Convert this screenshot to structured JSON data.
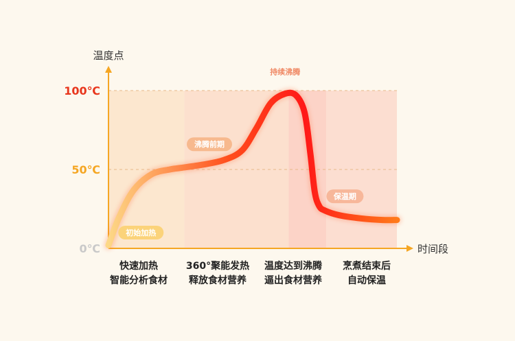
{
  "chart_data": {
    "type": "line",
    "ylabel": "温度点",
    "xlabel": "时间段",
    "y_ticks": [
      {
        "label": "100℃",
        "value": 100,
        "color": "#e8361c"
      },
      {
        "label": "50℃",
        "value": 50,
        "color": "#f5a623"
      },
      {
        "label": "0℃",
        "value": 0,
        "color": "#c9c9c9"
      }
    ],
    "ylim": [
      0,
      100
    ],
    "xlim": [
      0,
      4
    ],
    "phases": [
      {
        "line1": "快速加热",
        "line2": "智能分析食材",
        "band_color": "#fbe4c9"
      },
      {
        "line1": "360°聚能发热",
        "line2": "释放食材营养",
        "band_color": "#fcdcc8"
      },
      {
        "line1": "温度达到沸腾",
        "line2": "逼出食材营养",
        "band_color": "#fbcdbf"
      },
      {
        "line1": "烹煮结束后",
        "line2": "自动保温",
        "band_color": "#fbd9cb"
      }
    ],
    "series": [
      {
        "x": [
          0,
          0.15,
          0.35,
          0.6,
          0.85,
          1.0,
          1.3,
          1.6,
          1.85,
          2.05,
          2.25,
          2.45,
          2.6,
          2.72,
          2.8,
          2.86,
          2.92,
          3.0,
          3.2,
          3.5,
          3.8,
          4.0
        ],
        "y": [
          2,
          20,
          37,
          47,
          50,
          51,
          53,
          56,
          62,
          76,
          92,
          98,
          97,
          86,
          60,
          36,
          27,
          24,
          21,
          19,
          18,
          18
        ]
      }
    ],
    "annotations": [
      {
        "text": "初始加热",
        "x": 0.45,
        "y": 10,
        "style": "pill",
        "color": "#fbd37a"
      },
      {
        "text": "沸腾前期",
        "x": 1.4,
        "y": 66,
        "style": "pill",
        "color": "#f7b98e"
      },
      {
        "text": "持续沸腾",
        "x": 2.45,
        "y": 112,
        "style": "text",
        "color": "#f08a66"
      },
      {
        "text": "保温期",
        "x": 3.28,
        "y": 33,
        "style": "pill",
        "color": "#f7b79a"
      }
    ],
    "grid": true,
    "gradient": {
      "start": "#fdd887",
      "mid": "#ff4d1c",
      "peak": "#ff1818",
      "end": "#ff7a1a"
    }
  }
}
